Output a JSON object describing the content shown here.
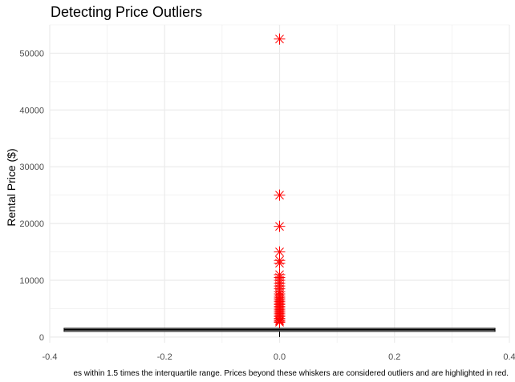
{
  "chart_data": {
    "type": "boxplot",
    "title": "Detecting Price Outliers",
    "xlabel": "",
    "ylabel": "Rental Price ($)",
    "caption": "es within 1.5 times the interquartile range. Prices beyond these whiskers are considered outliers and are highlighted in red.",
    "xlim": [
      -0.4,
      0.4
    ],
    "ylim": [
      -1000,
      55000
    ],
    "x_ticks": [
      -0.4,
      -0.2,
      0.0,
      0.2,
      0.4
    ],
    "x_tick_labels": [
      "-0.4",
      "-0.2",
      "0.0",
      "0.2",
      "0.4"
    ],
    "y_ticks": [
      0,
      10000,
      20000,
      30000,
      40000,
      50000
    ],
    "y_tick_labels": [
      "0",
      "10000",
      "20000",
      "30000",
      "40000",
      "50000"
    ],
    "grid": true,
    "box": {
      "x_center": 0.0,
      "half_width": 0.375,
      "q1": 1000,
      "median": 1300,
      "q3": 1550,
      "whisker_low": 0,
      "whisker_high": 2500
    },
    "outliers": [
      52500,
      25000,
      19500,
      15000,
      13500,
      13000,
      11000,
      10500,
      10000,
      9500,
      9000,
      8500,
      8000,
      7600,
      7200,
      6900,
      6600,
      6300,
      6000,
      5700,
      5400,
      5100,
      4800,
      4500,
      4200,
      3900,
      3600,
      3300,
      3000,
      2800,
      2600
    ],
    "outlier_color": "#ff0000",
    "box_color": "#000000",
    "grid_color": "#ebebeb"
  }
}
